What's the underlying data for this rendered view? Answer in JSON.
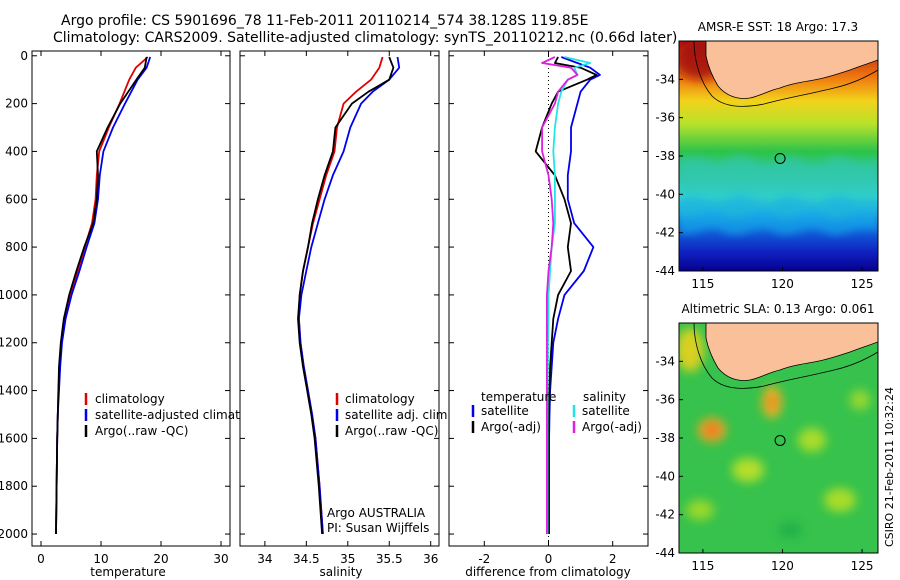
{
  "figure": {
    "title_line1": "Argo profile: CS 5901696_78 11-Feb-2011 20110214_574 38.128S 119.85E",
    "title_line2": "Climatology: CARS2009. Satellite-adjusted climatology: synTS_20110212.nc (0.66d later)",
    "stamp": "CSIRO 21-Feb-2011 10:32:24",
    "annotation_line1": "Argo AUSTRALIA",
    "annotation_line2": "PI: Susan Wijffels"
  },
  "colors": {
    "climatology": "#e00000",
    "satellite": "#0000ee",
    "argo": "#000000",
    "salinity_satellite": "#22e5e5",
    "salinity_argo": "#e020e0",
    "land": "#f9c09a",
    "zero_line": "#000000"
  },
  "chart_data": [
    {
      "type": "line",
      "id": "temperature",
      "xlabel": "temperature",
      "ylabel": "",
      "xlim": [
        -1.5,
        31.5
      ],
      "ylim": [
        2050,
        -20
      ],
      "xticks": [
        0,
        10,
        20,
        30
      ],
      "yticks": [
        0,
        200,
        400,
        600,
        800,
        1000,
        1200,
        1400,
        1600,
        1800,
        2000
      ],
      "depth": [
        5,
        50,
        100,
        200,
        300,
        400,
        500,
        600,
        700,
        800,
        900,
        1000,
        1100,
        1200,
        1300,
        1400,
        1500,
        1600,
        1800,
        2000
      ],
      "series": [
        {
          "name": "climatology",
          "color_key": "climatology",
          "values": [
            17.8,
            15.8,
            14.7,
            13.1,
            11.3,
            9.7,
            9.3,
            9.1,
            8.5,
            7.3,
            6.1,
            4.9,
            4.0,
            3.4,
            3.1,
            2.9,
            2.8,
            2.7,
            2.6,
            2.5
          ]
        },
        {
          "name": "satellite-adjusted climatology",
          "color_key": "satellite",
          "values": [
            18.2,
            17.6,
            16.1,
            14.0,
            12.0,
            10.4,
            9.8,
            9.5,
            8.9,
            7.6,
            6.4,
            5.1,
            4.1,
            3.5,
            3.2,
            3.0,
            2.8,
            2.7,
            2.6,
            2.5
          ]
        },
        {
          "name": "Argo(..raw -QC)",
          "color_key": "argo",
          "values": [
            17.6,
            17.3,
            15.9,
            13.2,
            11.1,
            9.3,
            9.5,
            9.3,
            8.7,
            7.2,
            5.9,
            4.7,
            3.8,
            3.3,
            3.0,
            2.9,
            2.8,
            2.7,
            2.6,
            2.5
          ]
        }
      ],
      "legend": [
        "climatology",
        "satellite-adjusted climatology",
        "Argo(..raw -QC)"
      ]
    },
    {
      "type": "line",
      "id": "salinity",
      "xlabel": "salinity",
      "ylabel": "",
      "xlim": [
        33.7,
        36.1
      ],
      "ylim": [
        2050,
        -20
      ],
      "xticks": [
        34,
        34.5,
        35,
        35.5,
        36
      ],
      "tick_labels": [
        "34",
        "34.5",
        "35",
        "35.5",
        "36"
      ],
      "depth": [
        5,
        50,
        100,
        150,
        200,
        300,
        400,
        500,
        600,
        700,
        800,
        900,
        1000,
        1100,
        1200,
        1300,
        1400,
        1500,
        1600,
        1800,
        2000
      ],
      "series": [
        {
          "name": "climatology",
          "color_key": "climatology",
          "values": [
            35.42,
            35.38,
            35.28,
            35.1,
            34.95,
            34.87,
            34.84,
            34.74,
            34.66,
            34.58,
            34.52,
            34.46,
            34.42,
            34.41,
            34.43,
            34.47,
            34.52,
            34.57,
            34.61,
            34.66,
            34.7
          ]
        },
        {
          "name": "satellite adj. clim.",
          "color_key": "satellite",
          "values": [
            35.6,
            35.62,
            35.5,
            35.3,
            35.16,
            35.03,
            34.95,
            34.82,
            34.72,
            34.64,
            34.56,
            34.5,
            34.44,
            34.41,
            34.43,
            34.47,
            34.52,
            34.57,
            34.61,
            34.66,
            34.7
          ]
        },
        {
          "name": "Argo(..raw -QC)",
          "color_key": "argo",
          "values": [
            35.5,
            35.55,
            35.5,
            35.25,
            35.05,
            34.85,
            34.82,
            34.72,
            34.64,
            34.57,
            34.52,
            34.46,
            34.42,
            34.4,
            34.42,
            34.46,
            34.51,
            34.56,
            34.6,
            34.65,
            34.69
          ]
        }
      ],
      "legend": [
        "climatology",
        "satellite adj. clim.",
        "Argo(..raw -QC)"
      ]
    },
    {
      "type": "line",
      "id": "difference",
      "xlabel": "difference from climatology",
      "ylabel": "",
      "xlim": [
        -3.1,
        3.1
      ],
      "ylim": [
        2050,
        -20
      ],
      "xticks": [
        -2,
        0,
        2
      ],
      "depth": [
        5,
        30,
        50,
        80,
        100,
        150,
        200,
        300,
        400,
        500,
        600,
        700,
        800,
        900,
        1000,
        1100,
        1200,
        1300,
        1400,
        1500,
        1600,
        1800,
        2000
      ],
      "series": [
        {
          "name": "temperature satellite",
          "color_key": "satellite",
          "values": [
            0.4,
            0.9,
            1.3,
            1.6,
            1.3,
            1.0,
            0.9,
            0.7,
            0.7,
            0.6,
            0.6,
            0.8,
            1.4,
            1.1,
            0.5,
            0.3,
            0.15,
            0.1,
            0.05,
            0.03,
            0.02,
            0.02,
            0.02
          ]
        },
        {
          "name": "temperature Argo(-adj)",
          "color_key": "argo",
          "values": [
            0.3,
            0.2,
            1.0,
            1.5,
            1.2,
            0.3,
            0.1,
            -0.2,
            -0.4,
            0.2,
            0.5,
            0.7,
            0.6,
            0.7,
            0.3,
            0.15,
            0.1,
            0.05,
            0.03,
            0.02,
            0.01,
            0.01,
            0.01
          ]
        },
        {
          "name": "salinity satellite",
          "color_key": "salinity_satellite",
          "values": [
            0.5,
            1.3,
            0.8,
            0.9,
            0.6,
            0.4,
            0.3,
            0.2,
            0.15,
            0.2,
            0.2,
            0.2,
            0.1,
            0.05,
            0.0,
            0.0,
            -0.02,
            -0.02,
            -0.03,
            -0.03,
            -0.03,
            -0.03,
            -0.03
          ]
        },
        {
          "name": "salinity Argo(-adj)",
          "color_key": "salinity_argo",
          "values": [
            0.2,
            -0.2,
            0.7,
            0.9,
            0.6,
            0.3,
            0.2,
            -0.2,
            -0.2,
            0.0,
            0.1,
            0.15,
            0.1,
            0.0,
            -0.05,
            -0.05,
            -0.05,
            -0.05,
            -0.05,
            -0.05,
            -0.05,
            -0.05,
            -0.05
          ]
        }
      ],
      "legend_headers": [
        "temperature",
        "salinity"
      ],
      "legend": [
        [
          "satellite",
          "Argo(-adj)"
        ],
        [
          "satellite",
          "Argo(-adj)"
        ]
      ]
    },
    {
      "type": "heatmap",
      "id": "sst_map",
      "title": "AMSR-E SST: 18 Argo: 17.3",
      "xlim": [
        113.5,
        126
      ],
      "ylim": [
        -44,
        -32
      ],
      "xticks": [
        115,
        120,
        125
      ],
      "yticks": [
        -34,
        -36,
        -38,
        -40,
        -42,
        -44
      ],
      "marker": {
        "lon": 119.85,
        "lat": -38.128
      }
    },
    {
      "type": "heatmap",
      "id": "sla_map",
      "title": "Altimetric SLA: 0.13 Argo: 0.061",
      "xlim": [
        113.5,
        126
      ],
      "ylim": [
        -44,
        -32
      ],
      "xticks": [
        115,
        120,
        125
      ],
      "yticks": [
        -34,
        -36,
        -38,
        -40,
        -42,
        -44
      ],
      "marker": {
        "lon": 119.85,
        "lat": -38.128
      }
    }
  ]
}
